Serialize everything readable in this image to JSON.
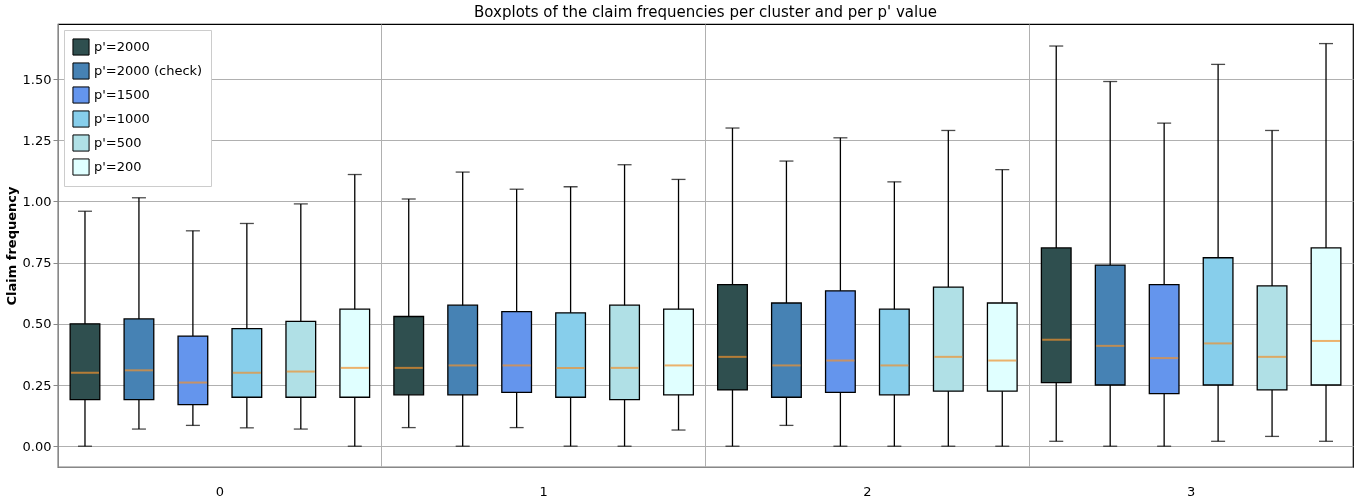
{
  "chart_data": {
    "type": "box",
    "title": "Boxplots of the claim frequencies per cluster and per p' value",
    "ylabel": "Claim frequency",
    "categories": [
      "0",
      "1",
      "2",
      "3"
    ],
    "ylim": [
      -0.085,
      1.725
    ],
    "yticks": [
      {
        "value": 0,
        "label": "0.00"
      },
      {
        "value": 0.25,
        "label": "0.25"
      },
      {
        "value": 0.5,
        "label": "0.50"
      },
      {
        "value": 0.75,
        "label": "0.75"
      },
      {
        "value": 1.0,
        "label": "1.00"
      },
      {
        "value": 1.25,
        "label": "1.25"
      },
      {
        "value": 1.5,
        "label": "1.50"
      }
    ],
    "grid": true,
    "legend": "top left",
    "series": [
      {
        "name": "p'=2000",
        "color": "#2f4f4f",
        "boxes": [
          {
            "low": 0,
            "q1": 0.19,
            "median": 0.3,
            "q3": 0.5,
            "high": 0.96
          },
          {
            "low": 0.076,
            "q1": 0.21,
            "median": 0.32,
            "q3": 0.53,
            "high": 1.01
          },
          {
            "low": 0,
            "q1": 0.23,
            "median": 0.365,
            "q3": 0.66,
            "high": 1.3
          },
          {
            "low": 0.02,
            "q1": 0.26,
            "median": 0.435,
            "q3": 0.81,
            "high": 1.635
          }
        ]
      },
      {
        "name": "p'=2000 (check)",
        "color": "#4682b4",
        "boxes": [
          {
            "low": 0.07,
            "q1": 0.19,
            "median": 0.31,
            "q3": 0.52,
            "high": 1.015
          },
          {
            "low": 0,
            "q1": 0.21,
            "median": 0.33,
            "q3": 0.576,
            "high": 1.12
          },
          {
            "low": 0.085,
            "q1": 0.2,
            "median": 0.33,
            "q3": 0.585,
            "high": 1.165
          },
          {
            "low": 0,
            "q1": 0.25,
            "median": 0.41,
            "q3": 0.74,
            "high": 1.49
          }
        ]
      },
      {
        "name": "p'=1500",
        "color": "#6495ed",
        "boxes": [
          {
            "low": 0.085,
            "q1": 0.17,
            "median": 0.26,
            "q3": 0.45,
            "high": 0.88
          },
          {
            "low": 0.076,
            "q1": 0.22,
            "median": 0.33,
            "q3": 0.55,
            "high": 1.05
          },
          {
            "low": 0,
            "q1": 0.22,
            "median": 0.35,
            "q3": 0.635,
            "high": 1.26
          },
          {
            "low": 0,
            "q1": 0.215,
            "median": 0.36,
            "q3": 0.66,
            "high": 1.32
          }
        ]
      },
      {
        "name": "p'=1000",
        "color": "#87ceeb",
        "boxes": [
          {
            "low": 0.075,
            "q1": 0.2,
            "median": 0.3,
            "q3": 0.48,
            "high": 0.91
          },
          {
            "low": 0,
            "q1": 0.2,
            "median": 0.32,
            "q3": 0.545,
            "high": 1.06
          },
          {
            "low": 0,
            "q1": 0.21,
            "median": 0.33,
            "q3": 0.56,
            "high": 1.08
          },
          {
            "low": 0.02,
            "q1": 0.25,
            "median": 0.42,
            "q3": 0.77,
            "high": 1.56
          }
        ]
      },
      {
        "name": "p'=500",
        "color": "#b0e0e6",
        "boxes": [
          {
            "low": 0.07,
            "q1": 0.2,
            "median": 0.305,
            "q3": 0.51,
            "high": 0.99
          },
          {
            "low": 0,
            "q1": 0.19,
            "median": 0.32,
            "q3": 0.576,
            "high": 1.15
          },
          {
            "low": 0,
            "q1": 0.225,
            "median": 0.365,
            "q3": 0.65,
            "high": 1.29
          },
          {
            "low": 0.04,
            "q1": 0.23,
            "median": 0.365,
            "q3": 0.655,
            "high": 1.29
          }
        ]
      },
      {
        "name": "p'=200",
        "color": "#e0ffff",
        "boxes": [
          {
            "low": 0,
            "q1": 0.2,
            "median": 0.32,
            "q3": 0.56,
            "high": 1.11
          },
          {
            "low": 0.066,
            "q1": 0.21,
            "median": 0.33,
            "q3": 0.56,
            "high": 1.09
          },
          {
            "low": 0,
            "q1": 0.225,
            "median": 0.35,
            "q3": 0.585,
            "high": 1.13
          },
          {
            "low": 0.02,
            "q1": 0.25,
            "median": 0.43,
            "q3": 0.81,
            "high": 1.645
          }
        ]
      }
    ]
  }
}
